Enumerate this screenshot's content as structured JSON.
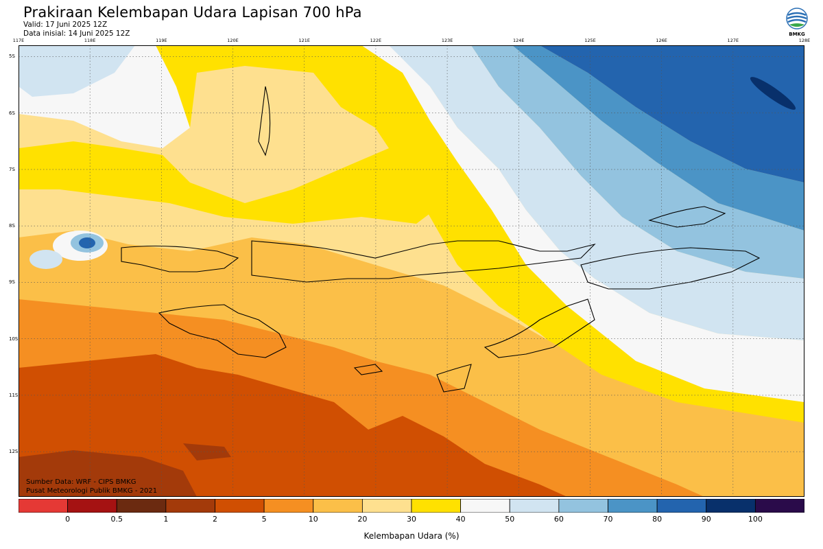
{
  "header": {
    "title": "Prakiraan Kelembapan Udara Lapisan 700 hPa",
    "valid": "Valid: 17 Juni 2025 12Z",
    "init": "Data inisial: 14 Juni 2025 12Z",
    "logo_text": "BMKG"
  },
  "map": {
    "lon_labels": [
      "117E",
      "118E",
      "119E",
      "120E",
      "121E",
      "122E",
      "123E",
      "124E",
      "125E",
      "126E",
      "127E",
      "128E"
    ],
    "lat_labels": [
      "5S",
      "6S",
      "7S",
      "8S",
      "9S",
      "10S",
      "11S",
      "12S"
    ],
    "lon_range": [
      117,
      128
    ],
    "lat_range": [
      -4.8,
      -12.8
    ],
    "grid": true
  },
  "footer": {
    "source": "Sumber Data: WRF - CIPS BMKG",
    "center": "Pusat Meteorologi Publik BMKG - 2021"
  },
  "colorbar": {
    "title": "Kelembapan Udara (%)",
    "labels": [
      "0",
      "0.5",
      "1",
      "2",
      "5",
      "10",
      "20",
      "30",
      "40",
      "50",
      "60",
      "70",
      "80",
      "90",
      "100"
    ],
    "colors": [
      "#e53935",
      "#a51212",
      "#6b2a10",
      "#a33a0a",
      "#d04f02",
      "#f58f22",
      "#fbbf48",
      "#fee08f",
      "#ffe100",
      "#f7f7f7",
      "#d1e4f1",
      "#93c3df",
      "#4b94c6",
      "#2364ae",
      "#08306b",
      "#2a0b4a"
    ]
  }
}
